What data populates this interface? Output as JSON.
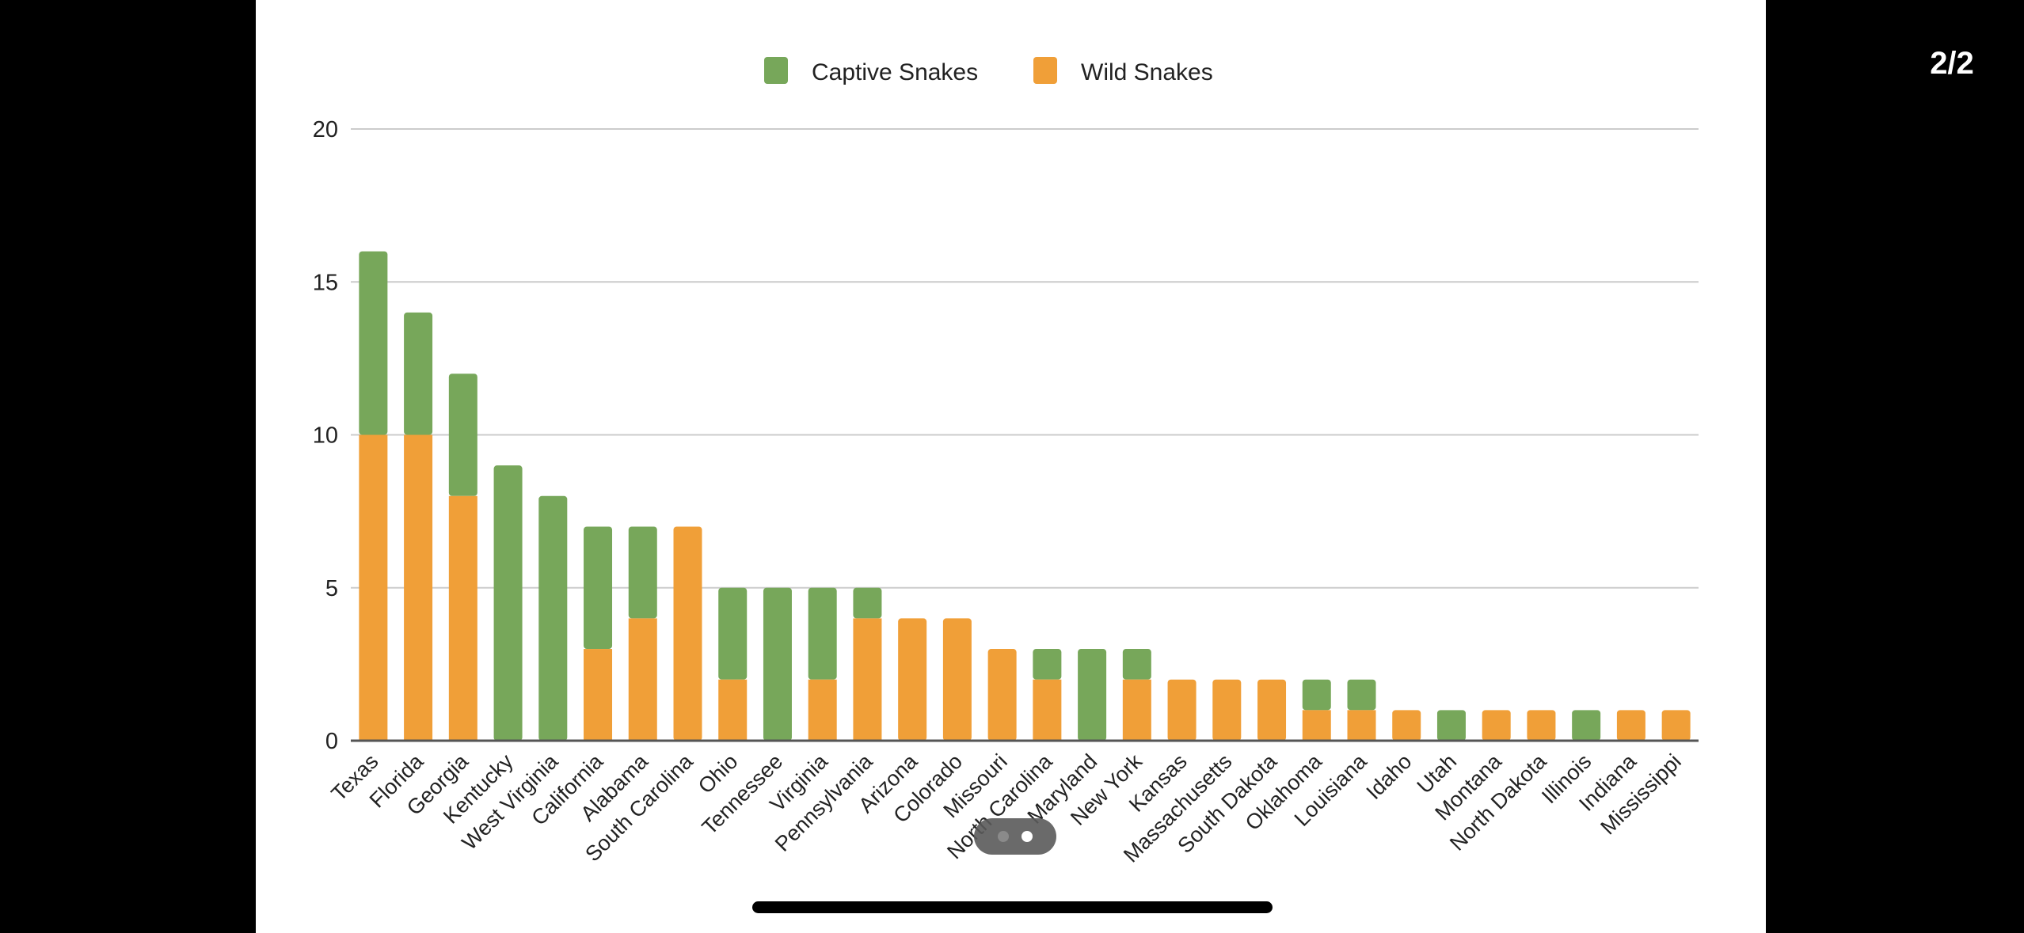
{
  "pager": {
    "label": "2/2"
  },
  "colors": {
    "captive": "#77a75a",
    "wild": "#f09f38",
    "grid": "#cccccc",
    "axis": "#555555"
  },
  "chart_data": {
    "type": "bar",
    "stacked": true,
    "title": "",
    "xlabel": "",
    "ylabel": "",
    "ylim": [
      0,
      20
    ],
    "yticks": [
      0,
      5,
      10,
      15,
      20
    ],
    "grid": true,
    "legend": {
      "placement": "top-center",
      "entries": [
        "Captive Snakes",
        "Wild Snakes"
      ]
    },
    "categories": [
      "Texas",
      "Florida",
      "Georgia",
      "Kentucky",
      "West Virginia",
      "California",
      "Alabama",
      "South Carolina",
      "Ohio",
      "Tennessee",
      "Virginia",
      "Pennsylvania",
      "Arizona",
      "Colorado",
      "Missouri",
      "North Carolina",
      "Maryland",
      "New York",
      "Kansas",
      "Massachusetts",
      "South Dakota",
      "Oklahoma",
      "Louisiana",
      "Idaho",
      "Utah",
      "Montana",
      "North Dakota",
      "Illinois",
      "Indiana",
      "Mississippi"
    ],
    "series": [
      {
        "name": "Wild Snakes",
        "values": [
          10,
          10,
          8,
          0,
          0,
          3,
          4,
          7,
          2,
          0,
          2,
          4,
          4,
          4,
          3,
          2,
          0,
          2,
          2,
          2,
          2,
          1,
          1,
          1,
          0,
          1,
          1,
          0,
          1,
          1
        ]
      },
      {
        "name": "Captive Snakes",
        "values": [
          6,
          4,
          4,
          9,
          8,
          4,
          3,
          0,
          3,
          5,
          3,
          1,
          0,
          0,
          0,
          1,
          3,
          1,
          0,
          0,
          0,
          1,
          1,
          0,
          1,
          0,
          0,
          1,
          0,
          0
        ]
      }
    ]
  }
}
